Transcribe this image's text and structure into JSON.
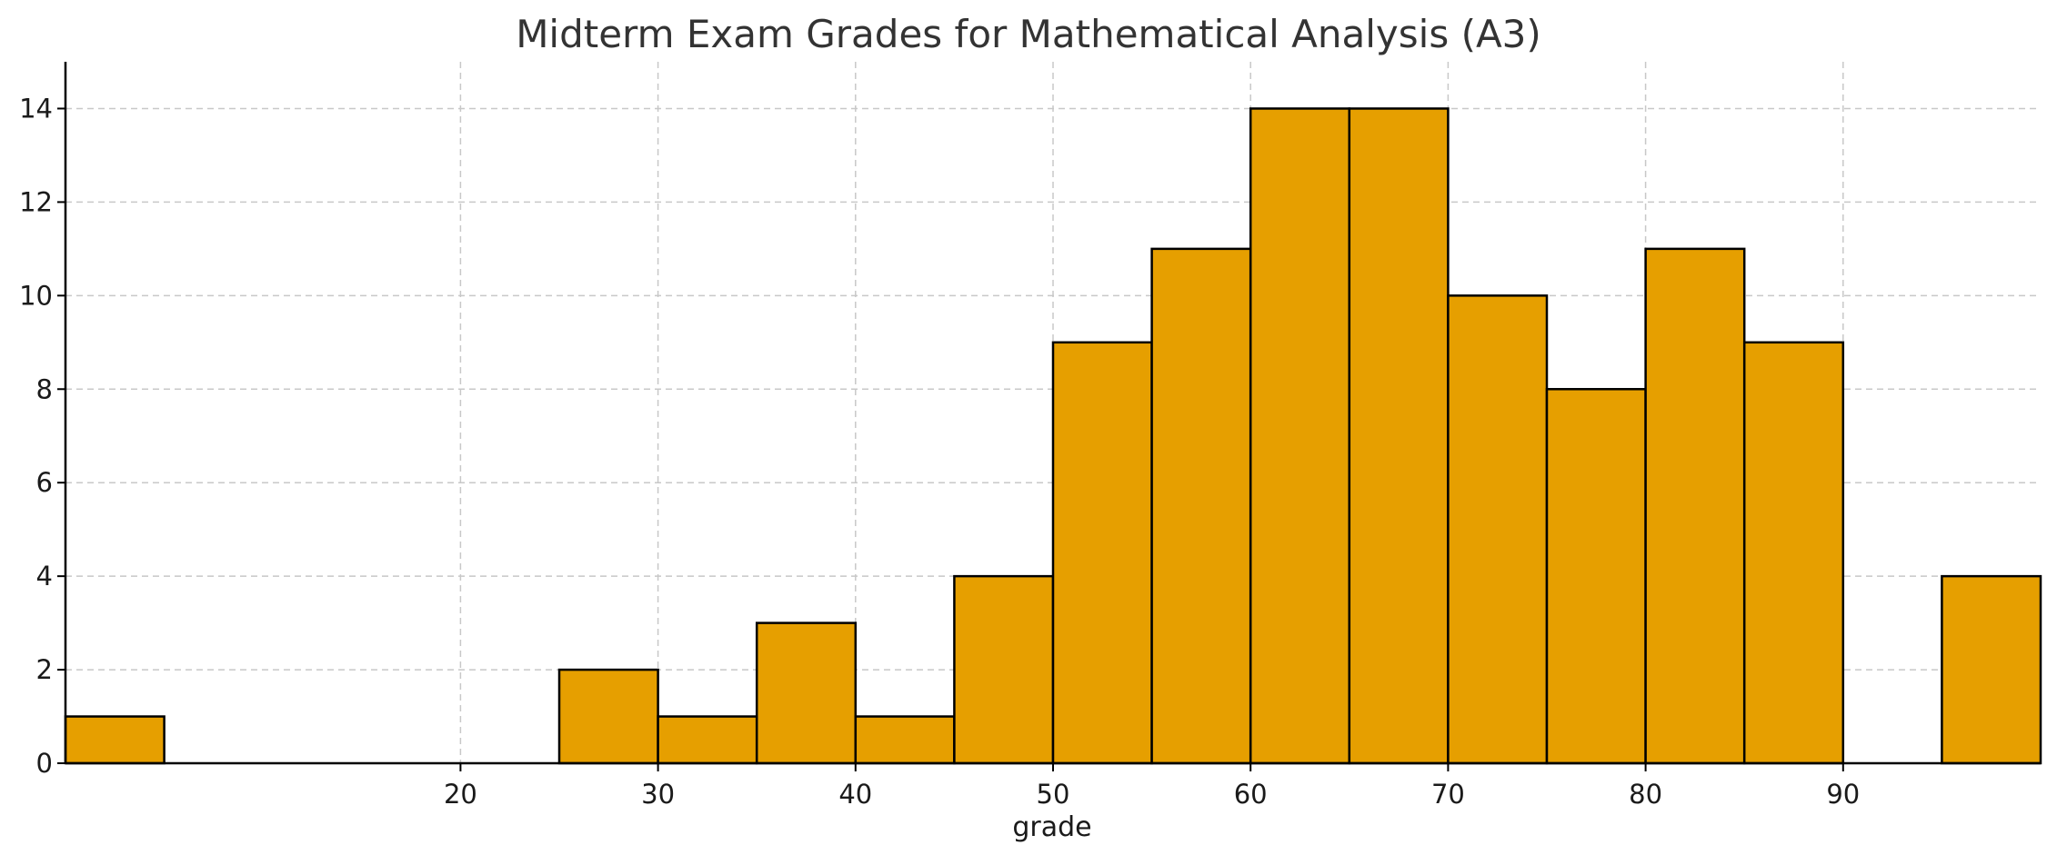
{
  "colors": {
    "bar_fill": "#E69F00",
    "bar_edge": "#000000",
    "grid": "#c8c8c8",
    "axis": "#000000",
    "title": "#333333"
  },
  "chart_data": {
    "type": "bar",
    "title": "Midterm Exam Grades for Mathematical Analysis (A3)",
    "xlabel": "grade",
    "ylabel": "",
    "histogram": true,
    "bin_width": 5,
    "bins": [
      {
        "start": 0,
        "end": 5,
        "count": 1
      },
      {
        "start": 5,
        "end": 10,
        "count": 0
      },
      {
        "start": 10,
        "end": 15,
        "count": 0
      },
      {
        "start": 15,
        "end": 20,
        "count": 0
      },
      {
        "start": 20,
        "end": 25,
        "count": 0
      },
      {
        "start": 25,
        "end": 30,
        "count": 2
      },
      {
        "start": 30,
        "end": 35,
        "count": 1
      },
      {
        "start": 35,
        "end": 40,
        "count": 3
      },
      {
        "start": 40,
        "end": 45,
        "count": 1
      },
      {
        "start": 45,
        "end": 50,
        "count": 4
      },
      {
        "start": 50,
        "end": 55,
        "count": 9
      },
      {
        "start": 55,
        "end": 60,
        "count": 11
      },
      {
        "start": 60,
        "end": 65,
        "count": 14
      },
      {
        "start": 65,
        "end": 70,
        "count": 14
      },
      {
        "start": 70,
        "end": 75,
        "count": 10
      },
      {
        "start": 75,
        "end": 80,
        "count": 8
      },
      {
        "start": 80,
        "end": 85,
        "count": 11
      },
      {
        "start": 85,
        "end": 90,
        "count": 9
      },
      {
        "start": 90,
        "end": 95,
        "count": 0
      },
      {
        "start": 95,
        "end": 100,
        "count": 4
      }
    ],
    "xlim": [
      0,
      100
    ],
    "ylim": [
      0,
      15
    ],
    "x_ticks": [
      20,
      30,
      40,
      50,
      60,
      70,
      80,
      90
    ],
    "x_tick_labels": [
      "20",
      "30",
      "40",
      "50",
      "60",
      "70",
      "80",
      "90"
    ],
    "y_ticks": [
      0,
      2,
      4,
      6,
      8,
      10,
      12,
      14
    ],
    "y_tick_labels": [
      "0",
      "2",
      "4",
      "6",
      "8",
      "10",
      "12",
      "14"
    ],
    "grid": true,
    "grid_style": "dashed",
    "legend": "none"
  }
}
